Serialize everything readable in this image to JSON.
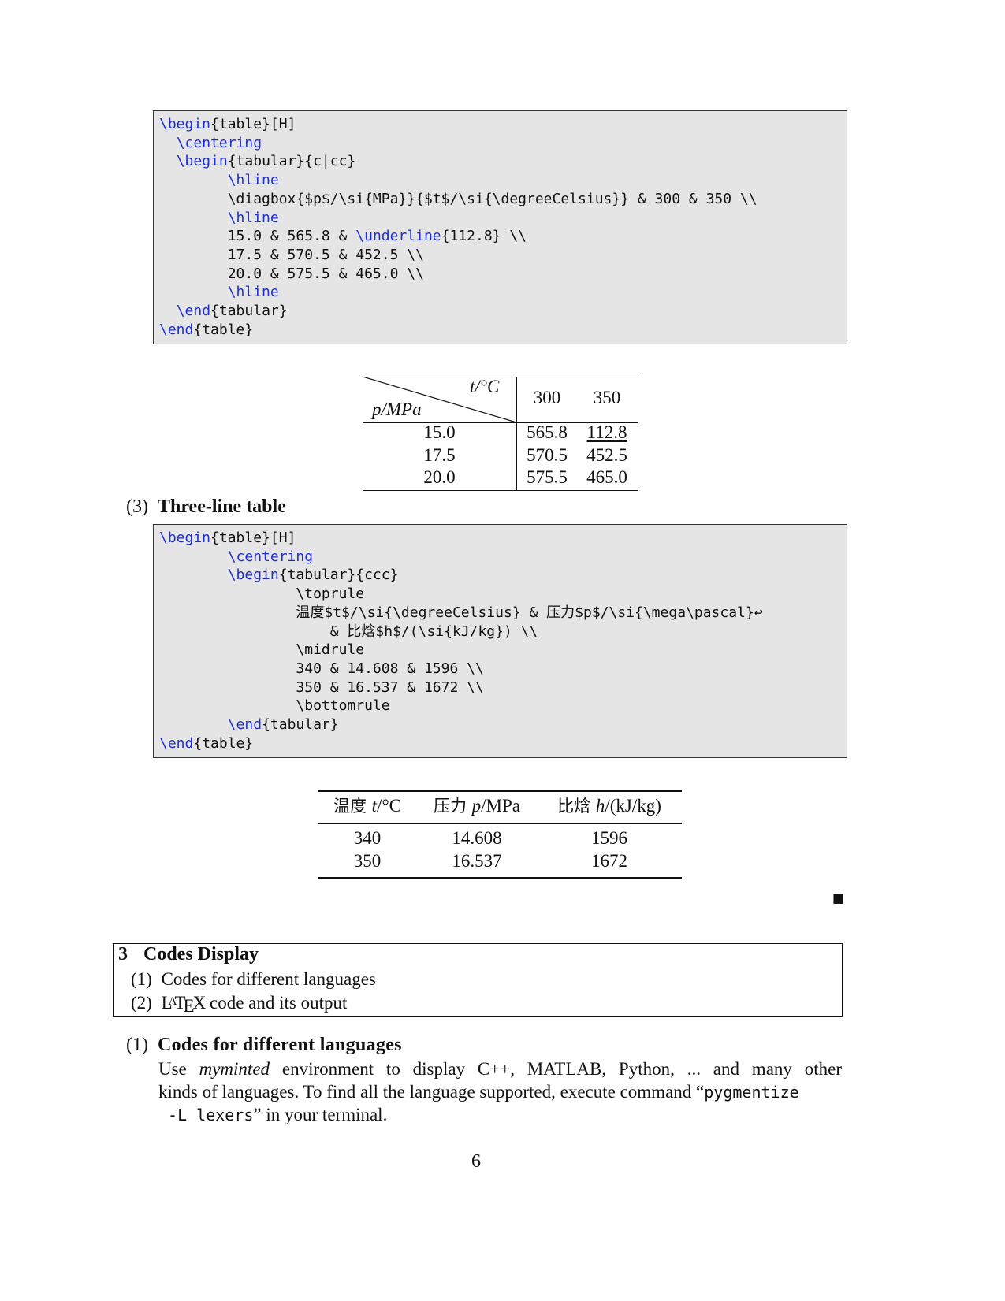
{
  "code_block_1": {
    "lines": [
      {
        "cmd": "\\begin",
        "rest": "{table}[H]",
        "indent": ""
      },
      {
        "cmd": "\\centering",
        "rest": "",
        "indent": "  "
      },
      {
        "cmd": "\\begin",
        "rest": "{tabular}{c|cc}",
        "indent": "  "
      },
      {
        "cmd": "\\hline",
        "rest": "",
        "indent": "        "
      },
      {
        "cmd": "",
        "rest": "\\diagbox{$p$/\\si{MPa}}{$t$/\\si{\\degreeCelsius}} & 300 & 350 \\\\",
        "indent": "        "
      },
      {
        "cmd": "\\hline",
        "rest": "",
        "indent": "        "
      },
      {
        "cmd": "",
        "rest": "15.0 & 565.8 & ",
        "cmd2": "\\underline",
        "rest2": "{112.8} \\\\",
        "indent": "        "
      },
      {
        "cmd": "",
        "rest": "17.5 & 570.5 & 452.5 \\\\",
        "indent": "        "
      },
      {
        "cmd": "",
        "rest": "20.0 & 575.5 & 465.0 \\\\",
        "indent": "        "
      },
      {
        "cmd": "\\hline",
        "rest": "",
        "indent": "        "
      },
      {
        "cmd": "\\end",
        "rest": "{tabular}",
        "indent": "  "
      },
      {
        "cmd": "\\end",
        "rest": "{table}",
        "indent": ""
      }
    ]
  },
  "table_1": {
    "diag_top": "t/°C",
    "diag_bottom": "p/MPa",
    "headers": [
      "300",
      "350"
    ],
    "rows": [
      {
        "p": "15.0",
        "v300": "565.8",
        "v350": "112.8"
      },
      {
        "p": "17.5",
        "v300": "570.5",
        "v350": "452.5"
      },
      {
        "p": "20.0",
        "v300": "575.5",
        "v350": "465.0"
      }
    ]
  },
  "section_3": {
    "number": "(3)",
    "title": "Three-line table"
  },
  "code_block_2": {
    "lines": [
      {
        "cmd": "\\begin",
        "rest": "{table}[H]",
        "indent": ""
      },
      {
        "cmd": "\\centering",
        "rest": "",
        "indent": "        "
      },
      {
        "cmd": "\\begin",
        "rest": "{tabular}{ccc}",
        "indent": "        "
      },
      {
        "cmd": "",
        "rest": "\\toprule",
        "indent": "                "
      },
      {
        "cmd": "",
        "rest": "温度$t$/\\si{\\degreeCelsius} & 压力$p$/\\si{\\mega\\pascal}↩",
        "indent": "                "
      },
      {
        "cmd": "",
        "rest": "& 比焓$h$/(\\si{kJ/kg}) \\\\",
        "indent": "                    "
      },
      {
        "cmd": "",
        "rest": "\\midrule",
        "indent": "                "
      },
      {
        "cmd": "",
        "rest": "340 & 14.608 & 1596 \\\\",
        "indent": "                "
      },
      {
        "cmd": "",
        "rest": "350 & 16.537 & 1672 \\\\",
        "indent": "                "
      },
      {
        "cmd": "",
        "rest": "\\bottomrule",
        "indent": "                "
      },
      {
        "cmd": "\\end",
        "rest": "{tabular}",
        "indent": "        "
      },
      {
        "cmd": "\\end",
        "rest": "{table}",
        "indent": ""
      }
    ]
  },
  "table_2": {
    "headers": [
      {
        "zh": "温度",
        "var": "t",
        "unit": "/°C"
      },
      {
        "zh": "压力",
        "var": "p",
        "unit": "/MPa"
      },
      {
        "zh": "比焓",
        "var": "h",
        "unit": "/(kJ/kg)"
      }
    ],
    "rows": [
      [
        "340",
        "14.608",
        "1596"
      ],
      [
        "350",
        "16.537",
        "1672"
      ]
    ]
  },
  "end_marker": "■",
  "toc_box": {
    "number": "3",
    "title": "Codes Display",
    "items": [
      {
        "num": "(1)",
        "label": "Codes for different languages"
      },
      {
        "num": "(2)",
        "label_latex": "LATEX",
        "label_rest": " code and its output"
      }
    ]
  },
  "section_1": {
    "number": "(1)",
    "title": "Codes for different languages",
    "para_line1_a": "Use ",
    "para_line1_em": "myminted",
    "para_line1_b": " environment to display C++, MATLAB, Python, ...  and many other",
    "para_line2_a": "kinds of languages.  To find all the language supported, execute command “",
    "para_line2_code": "pygmentize",
    "para_line3_code": " -L lexers",
    "para_line3_b": "” in your terminal."
  },
  "page_number": "6"
}
